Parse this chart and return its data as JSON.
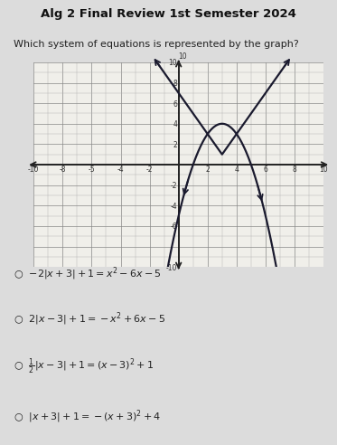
{
  "title": "Alg 2 Final Review 1st Semester 2024",
  "question": "Which system of equations is represented by the graph?",
  "xlim": [
    -10,
    10
  ],
  "ylim": [
    -10,
    10
  ],
  "curve_color": "#1a1a2e",
  "bg_color": "#dcdcdc",
  "plot_bg": "#f0efea",
  "grid_color": "#b0b0b0",
  "axis_color": "#222222",
  "options": [
    "$-2|x + 3| + 1 = x^2 - 6x - 5$",
    "$2|x - 3| + 1 = -x^2 + 6x - 5$",
    "$\\frac{1}{2}|x - 3| + 1 = (x-3)^2 + 1$",
    "$|x + 3| + 1 = -(x+3)^2 + 4$"
  ]
}
